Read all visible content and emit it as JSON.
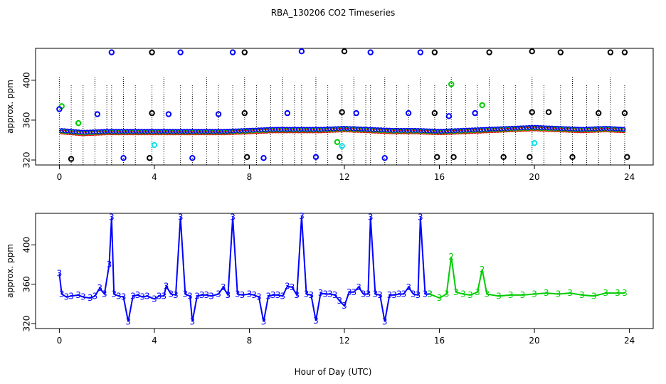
{
  "chart_data": [
    {
      "type": "scatter",
      "title": "RBA_130206  CO2 Timeseries",
      "ylabel": "approx. ppm",
      "xlabel": "",
      "xlim": [
        -1,
        25
      ],
      "ylim": [
        315,
        432
      ],
      "xticks": [
        "0",
        "4",
        "8",
        "12",
        "16",
        "20",
        "24"
      ],
      "yticks": [
        "320",
        "360",
        "400"
      ],
      "grid": false,
      "colors": {
        "red": "#ff0000",
        "green": "#00cc00",
        "blue": "#0000ff",
        "black": "#000000",
        "cyan": "#00e5ee"
      },
      "baseline": {
        "x": [
          0,
          1,
          2,
          3,
          4,
          5,
          6,
          7,
          8,
          9,
          10,
          11,
          12,
          13,
          14,
          15,
          16,
          17,
          18,
          19,
          20,
          21,
          22,
          23,
          23.8
        ],
        "y": [
          349,
          347,
          348,
          348,
          348,
          348,
          348,
          348,
          349,
          350,
          350,
          350,
          351,
          350,
          349,
          349,
          348,
          349,
          350,
          351,
          352,
          351,
          350,
          351,
          350
        ]
      },
      "high_blue": {
        "x": [
          2.2,
          5.1,
          7.3,
          10.2,
          13.1,
          15.2
        ],
        "y": [
          428,
          428,
          428,
          429,
          428,
          428
        ]
      },
      "high_black": {
        "x": [
          3.9,
          7.8,
          12,
          15.8,
          18.1,
          19.9,
          21.1,
          23.2,
          23.8
        ],
        "y": [
          428,
          428,
          429,
          428,
          428,
          429,
          428,
          428,
          428
        ]
      },
      "mid_blue": {
        "x": [
          0,
          1.6,
          4.6,
          6.7,
          9.6,
          12.5,
          14.7,
          16.4,
          17.5
        ],
        "y": [
          371,
          366,
          366,
          366,
          367,
          367,
          367,
          364,
          367
        ]
      },
      "mid_black": {
        "x": [
          3.9,
          7.8,
          11.9,
          15.8,
          19.9,
          20.6,
          22.7,
          23.8
        ],
        "y": [
          367,
          367,
          368,
          367,
          368,
          368,
          367,
          367
        ]
      },
      "low_blue": {
        "x": [
          2.7,
          5.6,
          8.6,
          10.8,
          13.7
        ],
        "y": [
          322,
          322,
          322,
          323,
          322
        ]
      },
      "low_black": {
        "x": [
          0.5,
          3.8,
          7.9,
          11.8,
          15.9,
          16.6,
          18.7,
          19.8,
          21.6,
          23.9
        ],
        "y": [
          321,
          322,
          323,
          323,
          323,
          323,
          323,
          323,
          323,
          323
        ]
      },
      "green_marks": {
        "x": [
          0.1,
          0.8,
          11.7,
          16.5,
          17.8
        ],
        "y": [
          374,
          357,
          338,
          396,
          375
        ]
      },
      "cyan_marks": {
        "x": [
          4,
          11.9,
          20
        ],
        "y": [
          335,
          334,
          337
        ]
      },
      "dotted_x": [
        0,
        0.5,
        1,
        1.5,
        2,
        2.2,
        2.7,
        3.2,
        3.9,
        4.4,
        5.1,
        5.6,
        6.2,
        6.7,
        7.3,
        7.8,
        8.3,
        8.9,
        9.4,
        9.9,
        10.2,
        10.8,
        11.3,
        11.9,
        12.4,
        12.9,
        13.1,
        13.7,
        14.2,
        14.7,
        15.2,
        15.8,
        16.3,
        16.5,
        17.1,
        17.6,
        18.1,
        18.7,
        19.2,
        19.9,
        20.4,
        21.1,
        21.6,
        22.2,
        22.7,
        23.2,
        23.8
      ]
    },
    {
      "type": "line",
      "xlabel": "Hour of Day (UTC)",
      "ylabel": "approx. ppm",
      "xlim": [
        -1,
        25
      ],
      "ylim": [
        315,
        432
      ],
      "xticks": [
        "0",
        "4",
        "8",
        "12",
        "16",
        "20",
        "24"
      ],
      "yticks": [
        "320",
        "360",
        "400"
      ],
      "grid": false,
      "point_label": "3",
      "green_label": "2",
      "series": [
        {
          "color": "#0000ff",
          "x": [
            0,
            0.1,
            0.3,
            0.5,
            0.8,
            1,
            1.3,
            1.5,
            1.7,
            1.9,
            2.1,
            2.2,
            2.3,
            2.5,
            2.7,
            2.9,
            3.1,
            3.3,
            3.5,
            3.7,
            4,
            4.2,
            4.4,
            4.5,
            4.7,
            4.9,
            5.1,
            5.3,
            5.5,
            5.6,
            5.8,
            6,
            6.2,
            6.4,
            6.7,
            6.9,
            7.1,
            7.3,
            7.5,
            7.7,
            8,
            8.2,
            8.4,
            8.6,
            8.8,
            9,
            9.2,
            9.4,
            9.6,
            9.8,
            10,
            10.2,
            10.4,
            10.6,
            10.8,
            11,
            11.2,
            11.4,
            11.6,
            11.8,
            12,
            12.2,
            12.4,
            12.6,
            12.8,
            13,
            13.1,
            13.3,
            13.5,
            13.7,
            13.9,
            14.1,
            14.3,
            14.5,
            14.7,
            14.9,
            15.1,
            15.2,
            15.4,
            15.6
          ],
          "y": [
            371,
            350,
            347,
            348,
            349,
            347,
            346,
            348,
            356,
            350,
            380,
            428,
            350,
            348,
            347,
            322,
            348,
            349,
            347,
            348,
            345,
            348,
            348,
            358,
            350,
            349,
            428,
            350,
            348,
            322,
            348,
            349,
            349,
            348,
            350,
            357,
            349,
            428,
            350,
            349,
            350,
            349,
            347,
            322,
            348,
            349,
            349,
            348,
            358,
            357,
            349,
            429,
            350,
            349,
            323,
            351,
            350,
            350,
            349,
            343,
            338,
            352,
            352,
            357,
            350,
            350,
            428,
            350,
            349,
            322,
            349,
            349,
            350,
            350,
            357,
            350,
            349,
            428,
            350,
            350
          ]
        },
        {
          "color": "#00cc00",
          "x": [
            15.6,
            16,
            16.3,
            16.5,
            16.7,
            17,
            17.3,
            17.6,
            17.8,
            18,
            18.5,
            19,
            19.5,
            20,
            20.5,
            21,
            21.5,
            22,
            22.5,
            23,
            23.5,
            23.8
          ],
          "y": [
            350,
            346,
            350,
            388,
            352,
            350,
            349,
            352,
            375,
            350,
            348,
            349,
            349,
            350,
            351,
            350,
            351,
            349,
            348,
            351,
            351,
            351
          ]
        }
      ]
    }
  ]
}
